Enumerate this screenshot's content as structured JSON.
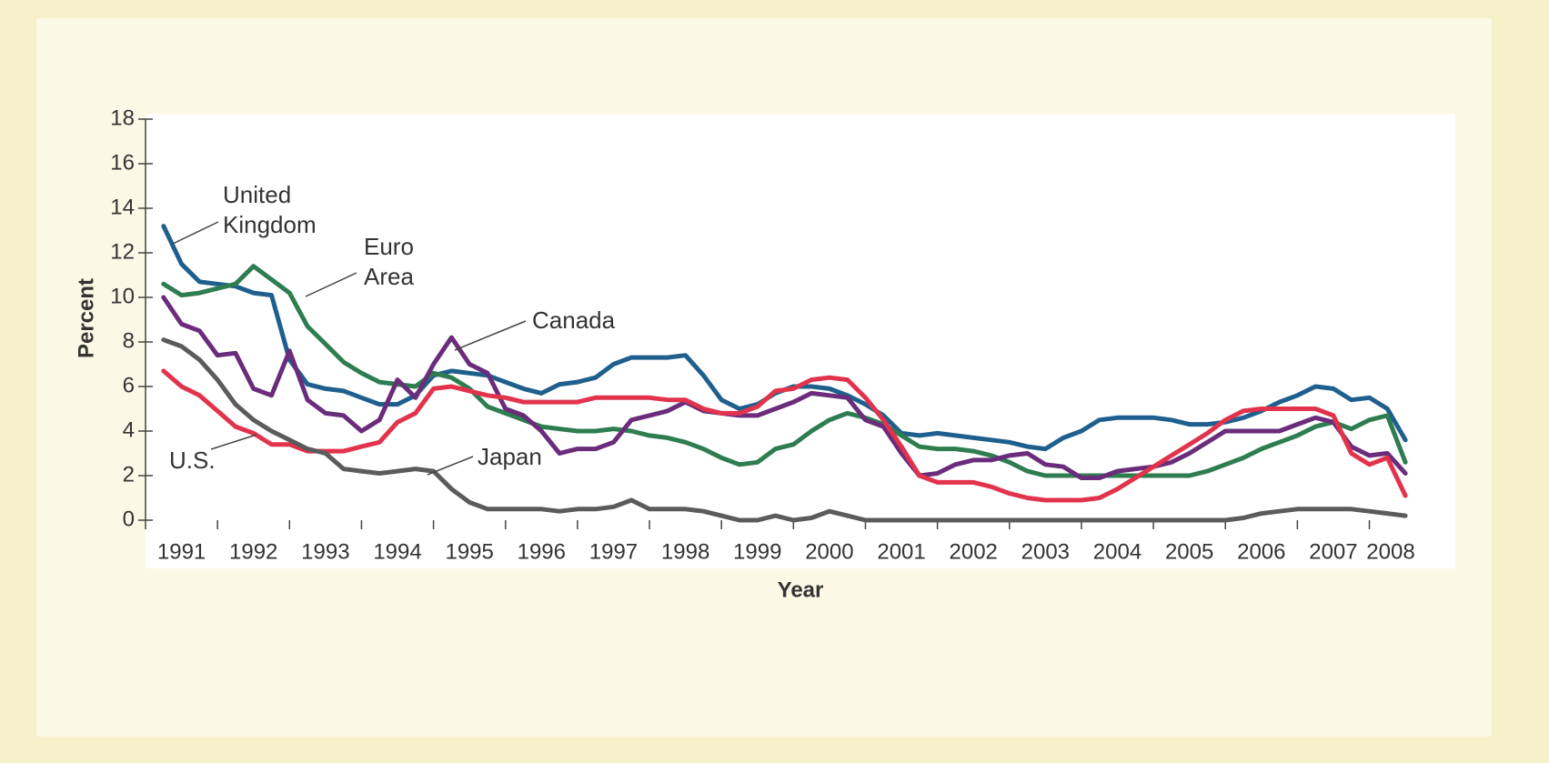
{
  "chart_data": {
    "type": "line",
    "xlabel": "Year",
    "ylabel": "Percent",
    "x": [
      1991.25,
      1991.5,
      1991.75,
      1992,
      1992.25,
      1992.5,
      1992.75,
      1993,
      1993.25,
      1993.5,
      1993.75,
      1994,
      1994.25,
      1994.5,
      1994.75,
      1995,
      1995.25,
      1995.5,
      1995.75,
      1996,
      1996.25,
      1996.5,
      1996.75,
      1997,
      1997.25,
      1997.5,
      1997.75,
      1998,
      1998.25,
      1998.5,
      1998.75,
      1999,
      1999.25,
      1999.5,
      1999.75,
      2000,
      2000.25,
      2000.5,
      2000.75,
      2001,
      2001.25,
      2001.5,
      2001.75,
      2002,
      2002.25,
      2002.5,
      2002.75,
      2003,
      2003.25,
      2003.5,
      2003.75,
      2004,
      2004.25,
      2004.5,
      2004.75,
      2005,
      2005.25,
      2005.5,
      2005.75,
      2006,
      2006.25,
      2006.5,
      2006.75,
      2007,
      2007.25,
      2007.5,
      2007.75,
      2008,
      2008.25,
      2008.5
    ],
    "series": [
      {
        "name": "United Kingdom",
        "color": "#1f5f8e",
        "values": [
          13.2,
          11.5,
          10.7,
          10.6,
          10.5,
          10.2,
          10.1,
          7.2,
          6.1,
          5.9,
          5.8,
          5.5,
          5.2,
          5.2,
          5.6,
          6.5,
          6.7,
          6.6,
          6.5,
          6.2,
          5.9,
          5.7,
          6.1,
          6.2,
          6.4,
          7.0,
          7.3,
          7.3,
          7.3,
          7.4,
          6.5,
          5.4,
          5.0,
          5.2,
          5.7,
          6.0,
          6.0,
          5.9,
          5.6,
          5.2,
          4.7,
          3.9,
          3.8,
          3.9,
          3.8,
          3.7,
          3.6,
          3.5,
          3.3,
          3.2,
          3.7,
          4.0,
          4.5,
          4.6,
          4.6,
          4.6,
          4.5,
          4.3,
          4.3,
          4.4,
          4.6,
          4.9,
          5.3,
          5.6,
          6.0,
          5.9,
          5.4,
          5.5,
          5.0,
          3.6
        ]
      },
      {
        "name": "Euro Area",
        "color": "#2e7d50",
        "values": [
          10.6,
          10.1,
          10.2,
          10.4,
          10.6,
          11.4,
          10.8,
          10.2,
          8.7,
          7.9,
          7.1,
          6.6,
          6.2,
          6.1,
          6.0,
          6.6,
          6.4,
          5.9,
          5.1,
          4.8,
          4.5,
          4.2,
          4.1,
          4.0,
          4.0,
          4.1,
          4.0,
          3.8,
          3.7,
          3.5,
          3.2,
          2.8,
          2.5,
          2.6,
          3.2,
          3.4,
          4.0,
          4.5,
          4.8,
          4.6,
          4.3,
          3.8,
          3.3,
          3.2,
          3.2,
          3.1,
          2.9,
          2.6,
          2.2,
          2.0,
          2.0,
          2.0,
          2.0,
          2.0,
          2.0,
          2.0,
          2.0,
          2.0,
          2.2,
          2.5,
          2.8,
          3.2,
          3.5,
          3.8,
          4.2,
          4.4,
          4.1,
          4.5,
          4.7,
          2.6
        ]
      },
      {
        "name": "Canada",
        "color": "#6a2c7b",
        "values": [
          10.0,
          8.8,
          8.5,
          7.4,
          7.5,
          5.9,
          5.6,
          7.6,
          5.4,
          4.8,
          4.7,
          4.0,
          4.5,
          6.3,
          5.5,
          7.0,
          8.2,
          7.0,
          6.6,
          5.0,
          4.7,
          4.0,
          3.0,
          3.2,
          3.2,
          3.5,
          4.5,
          4.7,
          4.9,
          5.3,
          4.9,
          4.8,
          4.7,
          4.7,
          5.0,
          5.3,
          5.7,
          5.6,
          5.5,
          4.5,
          4.2,
          3.0,
          2.0,
          2.1,
          2.5,
          2.7,
          2.7,
          2.9,
          3.0,
          2.5,
          2.4,
          1.9,
          1.9,
          2.2,
          2.3,
          2.4,
          2.6,
          3.0,
          3.5,
          4.0,
          4.0,
          4.0,
          4.0,
          4.3,
          4.6,
          4.4,
          3.3,
          2.9,
          3.0,
          2.1
        ]
      },
      {
        "name": "U.S.",
        "color": "#e2334c",
        "values": [
          6.7,
          6.0,
          5.6,
          4.9,
          4.2,
          3.9,
          3.4,
          3.4,
          3.1,
          3.1,
          3.1,
          3.3,
          3.5,
          4.4,
          4.8,
          5.9,
          6.0,
          5.8,
          5.6,
          5.5,
          5.3,
          5.3,
          5.3,
          5.3,
          5.5,
          5.5,
          5.5,
          5.5,
          5.4,
          5.4,
          5.0,
          4.8,
          4.8,
          5.1,
          5.8,
          5.9,
          6.3,
          6.4,
          6.3,
          5.5,
          4.5,
          3.3,
          2.0,
          1.7,
          1.7,
          1.7,
          1.5,
          1.2,
          1.0,
          0.9,
          0.9,
          0.9,
          1.0,
          1.4,
          1.9,
          2.4,
          2.9,
          3.4,
          3.9,
          4.5,
          4.9,
          5.0,
          5.0,
          5.0,
          5.0,
          4.7,
          3.0,
          2.5,
          2.8,
          1.1
        ]
      },
      {
        "name": "Japan",
        "color": "#5b5b5e",
        "values": [
          8.1,
          7.8,
          7.2,
          6.3,
          5.2,
          4.5,
          4.0,
          3.6,
          3.2,
          3.0,
          2.3,
          2.2,
          2.1,
          2.2,
          2.3,
          2.2,
          1.4,
          0.8,
          0.5,
          0.5,
          0.5,
          0.5,
          0.4,
          0.5,
          0.5,
          0.6,
          0.9,
          0.5,
          0.5,
          0.5,
          0.4,
          0.2,
          0.0,
          0.0,
          0.2,
          0.0,
          0.1,
          0.4,
          0.2,
          0.0,
          0.0,
          0.0,
          0.0,
          0.0,
          0.0,
          0.0,
          0.0,
          0.0,
          0.0,
          0.0,
          0.0,
          0.0,
          0.0,
          0.0,
          0.0,
          0.0,
          0.0,
          0.0,
          0.0,
          0.0,
          0.1,
          0.3,
          0.4,
          0.5,
          0.5,
          0.5,
          0.5,
          0.4,
          0.3,
          0.2
        ]
      }
    ],
    "xlim": [
      1991,
      2008.6
    ],
    "xticks": [
      1991,
      1992,
      1993,
      1994,
      1995,
      1996,
      1997,
      1998,
      1999,
      2000,
      2001,
      2002,
      2003,
      2004,
      2005,
      2006,
      2007,
      2008
    ],
    "ylim": [
      0,
      18
    ],
    "yticks": [
      0,
      2,
      4,
      6,
      8,
      10,
      12,
      14,
      16,
      18
    ],
    "grid": false
  }
}
